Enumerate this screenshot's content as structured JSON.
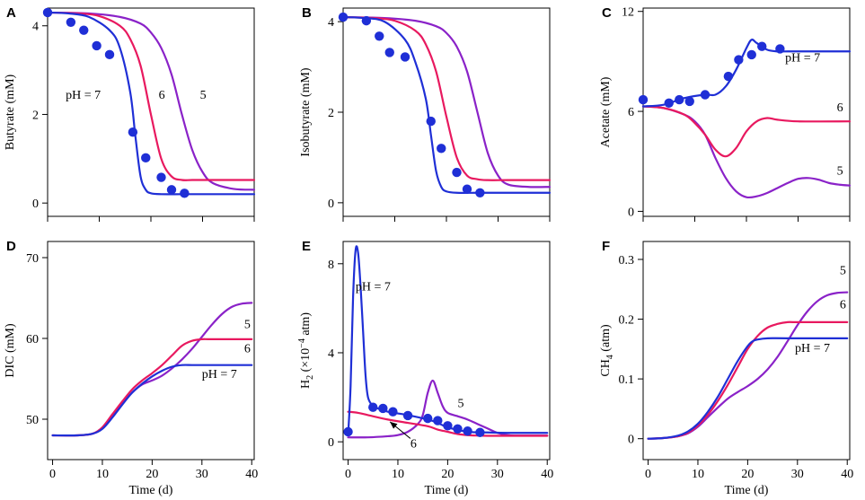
{
  "figure": {
    "colors": {
      "ph7": "#1f2fd6",
      "ph6": "#e8195f",
      "ph5": "#8a22c8",
      "marker": "#1f2fd6"
    },
    "shared_xlabel": "Time (d)"
  },
  "chart_data": [
    {
      "panel": "A",
      "type": "line",
      "title": "",
      "xlabel": "",
      "ylabel": "Butyrate (mM)",
      "xlim": [
        0,
        40
      ],
      "ylim": [
        -0.3,
        4.4
      ],
      "xticks": [
        0,
        10,
        20,
        30,
        40
      ],
      "yticks": [
        0,
        2,
        4
      ],
      "show_xticklabels": false,
      "show_xlabel": false,
      "subscript_label": false,
      "series": [
        {
          "name": "pH = 7",
          "color": "#1f2fd6",
          "x": [
            0,
            4,
            8,
            12,
            14,
            16,
            17,
            18,
            19,
            20,
            22,
            26,
            30,
            40
          ],
          "y": [
            4.3,
            4.28,
            4.2,
            3.9,
            3.5,
            2.5,
            1.5,
            0.6,
            0.3,
            0.22,
            0.2,
            0.2,
            0.2,
            0.2
          ]
        },
        {
          "name": "6",
          "color": "#e8195f",
          "x": [
            0,
            6,
            10,
            14,
            16,
            18,
            20,
            22,
            24,
            26,
            28,
            32,
            40
          ],
          "y": [
            4.3,
            4.28,
            4.22,
            4.0,
            3.7,
            3.1,
            2.0,
            1.0,
            0.6,
            0.52,
            0.52,
            0.52,
            0.52
          ]
        },
        {
          "name": "5",
          "color": "#8a22c8",
          "x": [
            0,
            8,
            14,
            18,
            20,
            22,
            24,
            26,
            28,
            30,
            32,
            36,
            40
          ],
          "y": [
            4.3,
            4.28,
            4.2,
            4.05,
            3.85,
            3.5,
            2.9,
            2.0,
            1.2,
            0.7,
            0.45,
            0.32,
            0.3
          ]
        }
      ],
      "points": {
        "x": [
          0,
          4.5,
          7,
          9.5,
          12,
          16.5,
          19,
          22,
          24,
          26.5
        ],
        "y": [
          4.3,
          4.08,
          3.9,
          3.55,
          3.35,
          1.6,
          1.02,
          0.58,
          0.3,
          0.22
        ]
      },
      "annotations": [
        {
          "text": "pH = 7",
          "x": 3.5,
          "y": 2.35
        },
        {
          "text": "6",
          "x": 21.5,
          "y": 2.35
        },
        {
          "text": "5",
          "x": 29.5,
          "y": 2.35
        }
      ]
    },
    {
      "panel": "B",
      "type": "line",
      "title": "",
      "xlabel": "",
      "ylabel": "Isobutyrate (mM)",
      "xlim": [
        0,
        40
      ],
      "ylim": [
        -0.3,
        4.3
      ],
      "xticks": [
        0,
        10,
        20,
        30,
        40
      ],
      "yticks": [
        0,
        2,
        4
      ],
      "show_xticklabels": false,
      "show_xlabel": false,
      "subscript_label": false,
      "series": [
        {
          "name": "pH = 7",
          "color": "#1f2fd6",
          "x": [
            0,
            4,
            8,
            12,
            14,
            16,
            17,
            18,
            19,
            20,
            22,
            26,
            30,
            40
          ],
          "y": [
            4.1,
            4.08,
            4.0,
            3.6,
            3.1,
            2.3,
            1.5,
            0.7,
            0.35,
            0.25,
            0.22,
            0.22,
            0.22,
            0.22
          ]
        },
        {
          "name": "6",
          "color": "#e8195f",
          "x": [
            0,
            6,
            10,
            14,
            16,
            18,
            20,
            22,
            24,
            26,
            28,
            32,
            40
          ],
          "y": [
            4.1,
            4.08,
            4.02,
            3.8,
            3.5,
            2.9,
            1.9,
            1.0,
            0.6,
            0.52,
            0.5,
            0.5,
            0.5
          ]
        },
        {
          "name": "5",
          "color": "#8a22c8",
          "x": [
            0,
            8,
            14,
            18,
            20,
            22,
            24,
            26,
            28,
            30,
            32,
            36,
            40
          ],
          "y": [
            4.1,
            4.08,
            4.02,
            3.9,
            3.75,
            3.45,
            2.9,
            2.0,
            1.1,
            0.6,
            0.4,
            0.35,
            0.35
          ]
        }
      ],
      "points": {
        "x": [
          0,
          4.5,
          7,
          9,
          12,
          17,
          19,
          22,
          24,
          26.5
        ],
        "y": [
          4.1,
          4.02,
          3.68,
          3.32,
          3.22,
          1.8,
          1.2,
          0.67,
          0.3,
          0.22
        ]
      },
      "annotations": []
    },
    {
      "panel": "C",
      "type": "line",
      "title": "",
      "xlabel": "",
      "ylabel": "Acetate (mM)",
      "xlim": [
        0,
        40
      ],
      "ylim": [
        -0.3,
        12.2
      ],
      "xticks": [
        0,
        10,
        20,
        30,
        40
      ],
      "yticks": [
        0,
        6,
        12
      ],
      "show_xticklabels": false,
      "show_xlabel": false,
      "subscript_label": false,
      "series": [
        {
          "name": "pH = 7",
          "color": "#1f2fd6",
          "x": [
            0,
            4,
            8,
            12,
            14,
            16,
            18,
            20,
            21,
            22,
            24,
            26,
            28,
            30,
            40
          ],
          "y": [
            6.3,
            6.4,
            6.8,
            7.0,
            7.0,
            7.5,
            8.5,
            9.8,
            10.3,
            10.1,
            9.7,
            9.6,
            9.6,
            9.6,
            9.6
          ]
        },
        {
          "name": "6",
          "color": "#e8195f",
          "x": [
            0,
            4,
            8,
            10,
            12,
            14,
            16,
            18,
            20,
            22,
            24,
            26,
            30,
            40
          ],
          "y": [
            6.3,
            6.2,
            5.8,
            5.3,
            4.6,
            3.7,
            3.3,
            3.8,
            4.8,
            5.4,
            5.6,
            5.5,
            5.4,
            5.4
          ]
        },
        {
          "name": "5",
          "color": "#8a22c8",
          "x": [
            0,
            4,
            8,
            10,
            12,
            14,
            16,
            18,
            20,
            22,
            24,
            26,
            28,
            30,
            32,
            34,
            36,
            38,
            40
          ],
          "y": [
            6.3,
            6.2,
            5.8,
            5.4,
            4.6,
            3.2,
            2.0,
            1.2,
            0.85,
            0.9,
            1.1,
            1.4,
            1.7,
            1.95,
            2.0,
            1.9,
            1.7,
            1.6,
            1.55
          ]
        }
      ],
      "points": {
        "x": [
          0,
          5,
          7,
          9,
          12,
          16.5,
          18.5,
          21,
          23,
          26.5
        ],
        "y": [
          6.7,
          6.5,
          6.7,
          6.6,
          7.0,
          8.1,
          9.1,
          9.4,
          9.9,
          9.75
        ]
      },
      "annotations": [
        {
          "text": "pH = 7",
          "x": 27.5,
          "y": 9.0
        },
        {
          "text": "6",
          "x": 37.5,
          "y": 6.0
        },
        {
          "text": "5",
          "x": 37.5,
          "y": 2.2
        }
      ]
    },
    {
      "panel": "D",
      "type": "line",
      "title": "",
      "xlabel": "Time (d)",
      "ylabel": "DIC (mM)",
      "xlim": [
        -1,
        40.5
      ],
      "ylim": [
        45,
        72
      ],
      "xticks": [
        0,
        10,
        20,
        30,
        40
      ],
      "yticks": [
        50,
        60,
        70
      ],
      "show_xticklabels": true,
      "show_xlabel": true,
      "subscript_label": false,
      "series": [
        {
          "name": "pH = 7",
          "color": "#1f2fd6",
          "x": [
            0,
            5,
            8,
            10,
            12,
            14,
            16,
            18,
            20,
            22,
            24,
            26,
            28,
            30,
            40
          ],
          "y": [
            48,
            48,
            48.2,
            48.8,
            50.2,
            51.8,
            53.3,
            54.4,
            55.3,
            56.0,
            56.5,
            56.7,
            56.7,
            56.7,
            56.7
          ]
        },
        {
          "name": "6",
          "color": "#e8195f",
          "x": [
            0,
            5,
            8,
            10,
            12,
            14,
            16,
            18,
            20,
            22,
            24,
            26,
            28,
            30,
            32,
            40
          ],
          "y": [
            48,
            48,
            48.2,
            49.0,
            50.6,
            52.2,
            53.7,
            54.8,
            55.7,
            56.7,
            57.9,
            59.1,
            59.7,
            59.9,
            59.9,
            59.9
          ]
        },
        {
          "name": "5",
          "color": "#8a22c8",
          "x": [
            0,
            5,
            8,
            10,
            12,
            14,
            16,
            18,
            20,
            22,
            24,
            26,
            28,
            30,
            32,
            34,
            36,
            38,
            40
          ],
          "y": [
            48,
            48,
            48.2,
            48.9,
            50.4,
            51.9,
            53.3,
            54.3,
            54.8,
            55.4,
            56.3,
            57.4,
            58.7,
            60.2,
            61.7,
            63.0,
            63.9,
            64.3,
            64.4
          ]
        }
      ],
      "points": {
        "x": [],
        "y": []
      },
      "annotations": [
        {
          "text": "5",
          "x": 38.5,
          "y": 61.3
        },
        {
          "text": "6",
          "x": 38.5,
          "y": 58.3
        },
        {
          "text": "pH = 7",
          "x": 30,
          "y": 55.1
        }
      ]
    },
    {
      "panel": "E",
      "type": "line",
      "title": "",
      "xlabel": "Time (d)",
      "ylabel_main": "H",
      "ylabel_sub": "2",
      "ylabel_rest": " (×10",
      "ylabel_sup": "−4",
      "ylabel_end": " atm)",
      "xlim": [
        -1,
        40.5
      ],
      "ylim": [
        -0.8,
        9.0
      ],
      "xticks": [
        0,
        10,
        20,
        30,
        40
      ],
      "yticks": [
        0,
        4,
        8
      ],
      "show_xticklabels": true,
      "show_xlabel": true,
      "subscript_label": true,
      "series": [
        {
          "name": "pH = 7",
          "color": "#1f2fd6",
          "x": [
            0,
            0.5,
            1,
            1.5,
            2,
            2.5,
            3,
            3.5,
            4,
            5,
            6,
            8,
            12,
            16,
            18,
            20,
            24,
            28,
            32,
            40
          ],
          "y": [
            0.3,
            2.5,
            6.5,
            8.6,
            8.5,
            7.0,
            5.0,
            3.0,
            2.0,
            1.6,
            1.5,
            1.35,
            1.2,
            1.0,
            0.85,
            0.65,
            0.45,
            0.42,
            0.4,
            0.4
          ]
        },
        {
          "name": "6",
          "color": "#e8195f",
          "x": [
            0,
            2,
            4,
            8,
            12,
            16,
            18,
            20,
            22,
            24,
            26,
            28,
            30,
            40
          ],
          "y": [
            1.35,
            1.3,
            1.2,
            1.0,
            0.85,
            0.7,
            0.55,
            0.45,
            0.35,
            0.3,
            0.28,
            0.27,
            0.27,
            0.27
          ]
        },
        {
          "name": "5",
          "color": "#8a22c8",
          "x": [
            0,
            4,
            8,
            10,
            12,
            14,
            15,
            16,
            17,
            18,
            19,
            20,
            22,
            24,
            26,
            28,
            30,
            32,
            34,
            40
          ],
          "y": [
            0.2,
            0.2,
            0.25,
            0.3,
            0.45,
            0.8,
            1.2,
            2.2,
            2.75,
            2.2,
            1.6,
            1.3,
            1.15,
            1.0,
            0.8,
            0.6,
            0.4,
            0.3,
            0.28,
            0.28
          ]
        }
      ],
      "points": {
        "x": [
          0,
          5,
          7,
          9,
          12,
          16,
          18,
          20,
          22,
          24,
          26.5
        ],
        "y": [
          0.45,
          1.55,
          1.5,
          1.35,
          1.18,
          1.05,
          0.95,
          0.72,
          0.58,
          0.48,
          0.42
        ]
      },
      "annotations": [
        {
          "text": "pH = 7",
          "x": 1.5,
          "y": 6.8
        },
        {
          "text": "5",
          "x": 22,
          "y": 1.55
        },
        {
          "text": "6",
          "x": 12.5,
          "y": -0.25
        }
      ],
      "arrow": {
        "from": [
          12.5,
          0.15
        ],
        "to": [
          8.4,
          0.9
        ]
      }
    },
    {
      "panel": "F",
      "type": "line",
      "title": "",
      "xlabel": "Time (d)",
      "ylabel_main": "CH",
      "ylabel_sub": "4",
      "ylabel_rest": " (atm)",
      "xlim": [
        -1,
        40.5
      ],
      "ylim": [
        -0.035,
        0.33
      ],
      "xticks": [
        0,
        10,
        20,
        30,
        40
      ],
      "yticks": [
        0,
        0.1,
        0.2,
        0.3
      ],
      "ytick_labels": [
        "0",
        "0.1",
        "0.2",
        "0.3"
      ],
      "show_xticklabels": true,
      "show_xlabel": true,
      "subscript_label": true,
      "series": [
        {
          "name": "pH = 7",
          "color": "#1f2fd6",
          "x": [
            0,
            3,
            6,
            8,
            10,
            12,
            14,
            16,
            18,
            20,
            21,
            22,
            24,
            28,
            40
          ],
          "y": [
            0,
            0.001,
            0.005,
            0.012,
            0.025,
            0.045,
            0.07,
            0.1,
            0.13,
            0.155,
            0.163,
            0.166,
            0.168,
            0.168,
            0.168
          ]
        },
        {
          "name": "6",
          "color": "#e8195f",
          "x": [
            0,
            3,
            6,
            8,
            10,
            12,
            14,
            16,
            18,
            20,
            22,
            24,
            26,
            28,
            30,
            40
          ],
          "y": [
            0,
            0.001,
            0.004,
            0.01,
            0.022,
            0.04,
            0.063,
            0.09,
            0.12,
            0.15,
            0.172,
            0.186,
            0.192,
            0.195,
            0.195,
            0.195
          ]
        },
        {
          "name": "5",
          "color": "#8a22c8",
          "x": [
            0,
            3,
            6,
            8,
            10,
            12,
            14,
            16,
            18,
            20,
            22,
            24,
            26,
            28,
            30,
            32,
            34,
            36,
            38,
            40
          ],
          "y": [
            0,
            0.001,
            0.004,
            0.009,
            0.02,
            0.036,
            0.052,
            0.067,
            0.078,
            0.088,
            0.1,
            0.116,
            0.137,
            0.163,
            0.19,
            0.213,
            0.23,
            0.24,
            0.244,
            0.245
          ]
        }
      ],
      "points": {
        "x": [],
        "y": []
      },
      "annotations": [
        {
          "text": "5",
          "x": 38.5,
          "y": 0.275
        },
        {
          "text": "6",
          "x": 38.5,
          "y": 0.218
        },
        {
          "text": "pH = 7",
          "x": 29.5,
          "y": 0.145
        }
      ]
    }
  ]
}
